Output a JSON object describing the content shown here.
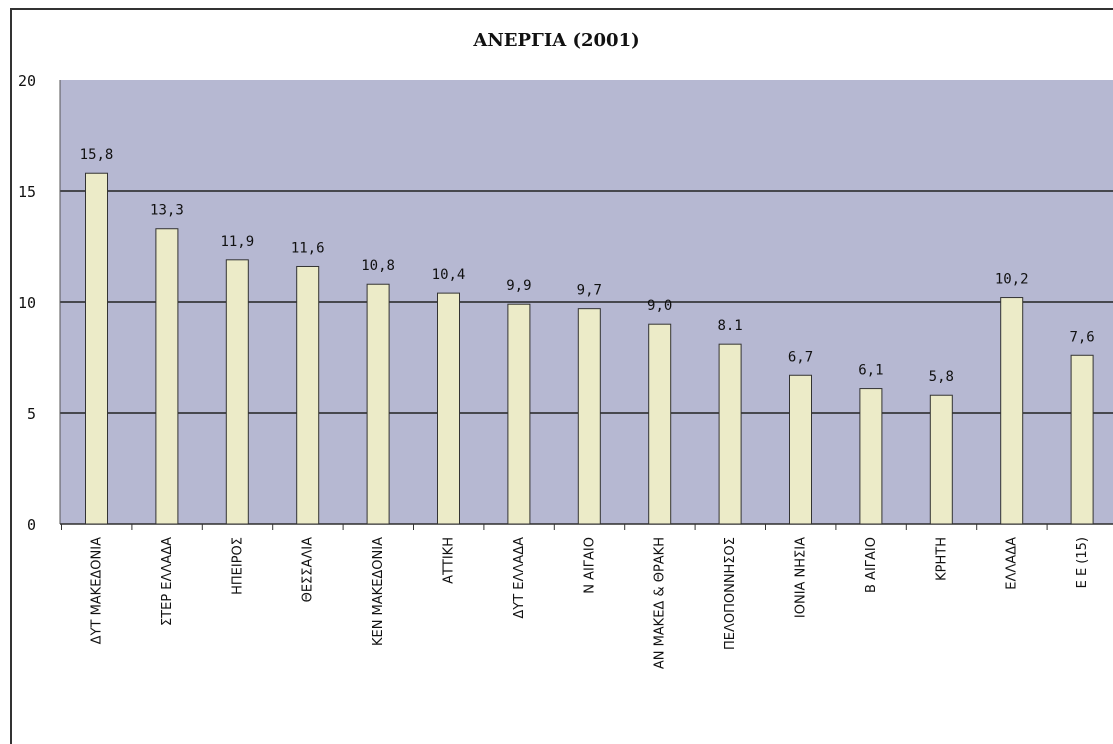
{
  "chart_data": {
    "type": "bar",
    "title": "ΑΝΕΡΓΙΑ (2001)",
    "categories": [
      "ΔΥΤ ΜΑΚΕΔΟΝΙΑ",
      "ΣΤΕΡ ΕΛΛΑΔΑ",
      "ΗΠΕΙΡΟΣ",
      "ΘΕΣΣΑΛΙΑ",
      "ΚΕΝ ΜΑΚΕΔΟΝΙΑ",
      "ΑΤΤΙΚΗ",
      "ΔΥΤ ΕΛΛΑΔΑ",
      "Ν ΑΙΓΑΙΟ",
      "ΑΝ ΜΑΚΕΔ & ΘΡΑΚΗ",
      "ΠΕΛΟΠΟΝΝΗΣΟΣ",
      "ΙΟΝΙΑ ΝΗΣΙΑ",
      "Β ΑΙΓΑΙΟ",
      "ΚΡΗΤΗ",
      "ΕΛΛΑΔΑ",
      "Ε Ε (15)"
    ],
    "values": [
      15.8,
      13.3,
      11.9,
      11.6,
      10.8,
      10.4,
      9.9,
      9.7,
      9.0,
      8.1,
      6.7,
      6.1,
      5.8,
      10.2,
      7.6
    ],
    "value_labels": [
      "15,8",
      "13,3",
      "11,9",
      "11,6",
      "10,8",
      "10,4",
      "9,9",
      "9,7",
      "9,0",
      "8.1",
      "6,7",
      "6,1",
      "5,8",
      "10,2",
      "7,6"
    ],
    "ylim": [
      0,
      20
    ],
    "yticks": [
      0,
      5,
      10,
      15,
      20
    ],
    "xlabel": "",
    "ylabel": "",
    "grid": true,
    "colors": {
      "plot_bg": "#b6b8d2",
      "bar_fill": "#ecebc8",
      "bar_stroke": "#333333",
      "gridline": "#222222"
    }
  }
}
